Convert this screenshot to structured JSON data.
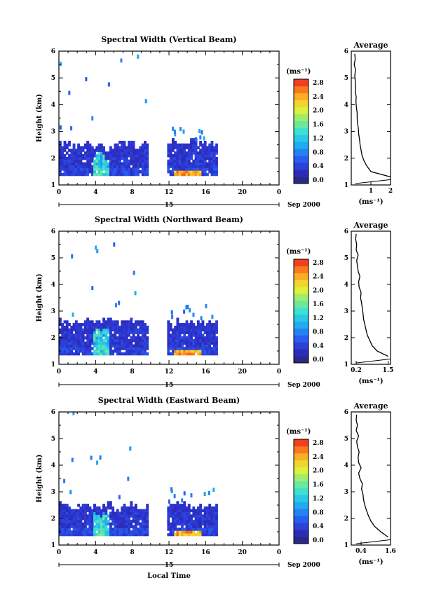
{
  "chart_data": [
    {
      "type": "heatmap",
      "title": "Spectral Width (Vertical Beam)",
      "xlabel": "",
      "ylabel": "Height (km)",
      "x_ticks": [
        "0",
        "4",
        "8",
        "12",
        "16",
        "20",
        "0"
      ],
      "xlim": [
        0,
        24
      ],
      "y_ticks": [
        "1",
        "2",
        "3",
        "4",
        "5",
        "6"
      ],
      "ylim": [
        1,
        6
      ],
      "date_label": "Sep 2000",
      "day_label": "15",
      "colorbar": {
        "unit": "(ms⁻¹)",
        "ticks": [
          "0.0",
          "0.4",
          "0.8",
          "1.2",
          "1.6",
          "2.0",
          "2.4",
          "2.8"
        ],
        "range": [
          0,
          3.0
        ]
      },
      "data_segments": [
        [
          0,
          9.6
        ],
        [
          11.8,
          17.3
        ]
      ],
      "top_heights": [
        2.5,
        2.4,
        2.5,
        2.4,
        2.3,
        2.5,
        2.5,
        2.4,
        2.5,
        2.5,
        2.6,
        2.6,
        2.6,
        2.5,
        2.5
      ],
      "average": {
        "title": "Average",
        "x_ticks": [
          "1",
          "2"
        ],
        "xlim": [
          0,
          2
        ],
        "xlabel": "(ms⁻¹)",
        "heights": [
          1.3,
          1.5,
          1.7,
          1.9,
          2.1,
          2.3,
          2.5,
          2.7,
          2.9,
          3.1,
          3.3,
          3.5,
          3.7,
          3.9,
          4.1,
          4.3,
          4.5,
          4.7,
          4.9,
          5.1,
          5.3,
          5.5,
          5.7,
          5.9
        ],
        "values": [
          2.0,
          1.0,
          0.8,
          0.65,
          0.55,
          0.5,
          0.45,
          0.42,
          0.38,
          0.36,
          0.32,
          0.3,
          0.3,
          0.26,
          0.24,
          0.25,
          0.2,
          0.22,
          0.2,
          0.18,
          0.22,
          0.15,
          0.2,
          0.18
        ]
      }
    },
    {
      "type": "heatmap",
      "title": "Spectral Width (Northward Beam)",
      "xlabel": "",
      "ylabel": "Height (km)",
      "x_ticks": [
        "0",
        "4",
        "8",
        "12",
        "16",
        "20",
        "0"
      ],
      "xlim": [
        0,
        24
      ],
      "y_ticks": [
        "1",
        "2",
        "3",
        "4",
        "5",
        "6"
      ],
      "ylim": [
        1,
        6
      ],
      "date_label": "Sep 2000",
      "day_label": "15",
      "colorbar": {
        "unit": "(ms⁻¹)",
        "ticks": [
          "0.0",
          "0.4",
          "0.8",
          "1.2",
          "1.6",
          "2.0",
          "2.4",
          "2.8"
        ],
        "range": [
          0,
          3.0
        ]
      },
      "data_segments": [
        [
          0,
          9.6
        ],
        [
          11.8,
          17.3
        ]
      ],
      "top_heights": [
        2.6,
        2.5,
        2.6,
        2.5,
        2.6,
        2.5,
        2.6,
        2.6,
        2.5,
        2.6,
        2.5,
        2.6,
        2.5,
        2.5,
        2.6
      ],
      "average": {
        "title": "Average",
        "x_ticks": [
          "0.2",
          "1.5"
        ],
        "xlim": [
          0,
          1.6
        ],
        "xlabel": "(ms⁻¹)",
        "heights": [
          1.3,
          1.5,
          1.7,
          1.9,
          2.1,
          2.3,
          2.5,
          2.7,
          2.9,
          3.1,
          3.3,
          3.5,
          3.7,
          3.9,
          4.1,
          4.3,
          4.5,
          4.7,
          4.9,
          5.1,
          5.3,
          5.5,
          5.7,
          5.9
        ],
        "values": [
          1.5,
          1.05,
          0.85,
          0.75,
          0.65,
          0.6,
          0.55,
          0.5,
          0.48,
          0.45,
          0.42,
          0.38,
          0.4,
          0.32,
          0.3,
          0.35,
          0.28,
          0.25,
          0.22,
          0.28,
          0.2,
          0.22,
          0.18,
          0.2
        ]
      }
    },
    {
      "type": "heatmap",
      "title": "Spectral Width (Eastward Beam)",
      "xlabel": "Local Time",
      "ylabel": "Height (km)",
      "x_ticks": [
        "0",
        "4",
        "8",
        "12",
        "16",
        "20",
        "0"
      ],
      "xlim": [
        0,
        24
      ],
      "y_ticks": [
        "1",
        "2",
        "3",
        "4",
        "5",
        "6"
      ],
      "ylim": [
        1,
        6
      ],
      "date_label": "Sep 2000",
      "day_label": "15",
      "colorbar": {
        "unit": "(ms⁻¹)",
        "ticks": [
          "0.0",
          "0.4",
          "0.8",
          "1.2",
          "1.6",
          "2.0",
          "2.4",
          "2.8"
        ],
        "range": [
          0,
          3.0
        ]
      },
      "data_segments": [
        [
          0,
          9.6
        ],
        [
          11.8,
          17.3
        ]
      ],
      "top_heights": [
        2.5,
        2.4,
        2.5,
        2.4,
        2.5,
        2.3,
        2.5,
        2.4,
        2.4,
        2.5,
        2.4,
        2.5,
        2.4,
        2.4,
        2.5
      ],
      "average": {
        "title": "Average",
        "x_ticks": [
          "0.4",
          "1.6"
        ],
        "xlim": [
          0,
          1.6
        ],
        "xlabel": "(ms⁻¹)",
        "heights": [
          1.3,
          1.5,
          1.7,
          1.9,
          2.1,
          2.3,
          2.5,
          2.7,
          2.9,
          3.1,
          3.3,
          3.5,
          3.7,
          3.9,
          4.1,
          4.3,
          4.5,
          4.7,
          4.9,
          5.1,
          5.3,
          5.5,
          5.7,
          5.9
        ],
        "values": [
          1.5,
          1.2,
          0.95,
          0.8,
          0.7,
          0.62,
          0.55,
          0.5,
          0.48,
          0.42,
          0.45,
          0.35,
          0.3,
          0.4,
          0.3,
          0.28,
          0.32,
          0.25,
          0.22,
          0.3,
          0.2,
          0.25,
          0.2,
          0.22
        ]
      }
    }
  ]
}
